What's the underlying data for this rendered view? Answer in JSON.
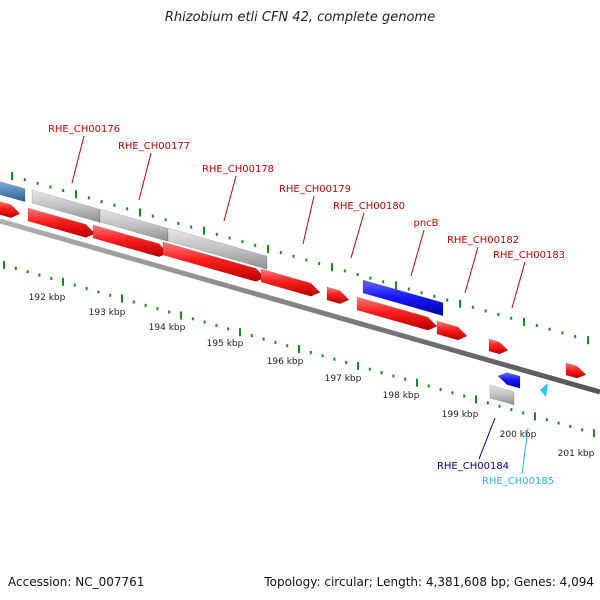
{
  "title": "Rhizobium etli CFN 42, complete genome",
  "footer": {
    "accession": "Accession: NC_007761",
    "summary": "Topology: circular; Length: 4,381,608 bp; Genes: 4,094"
  },
  "colors": {
    "forward_gene": "#ff1f1f",
    "reverse_gene": "#1a1aff",
    "pseudo_gene": "#c0c0c0",
    "light_blue": "#29c5ee",
    "steel_blue": "#4a86c0",
    "backbone": "#7a7a7a",
    "tick": "#1a8a1a",
    "label_red": "#cc0000",
    "label_navy": "#00008b",
    "label_cyan": "#29b6e6",
    "kbp_text": "#222222"
  },
  "scale": {
    "labels": [
      "192 kbp",
      "193 kbp",
      "194 kbp",
      "195 kbp",
      "196 kbp",
      "197 kbp",
      "198 kbp",
      "199 kbp",
      "200 kbp",
      "201 kbp"
    ]
  },
  "gene_labels": [
    {
      "text": "RHE_CH00176",
      "color": "label_red"
    },
    {
      "text": "RHE_CH00177",
      "color": "label_red"
    },
    {
      "text": "RHE_CH00178",
      "color": "label_red"
    },
    {
      "text": "RHE_CH00179",
      "color": "label_red"
    },
    {
      "text": "RHE_CH00180",
      "color": "label_red"
    },
    {
      "text": "pncB",
      "color": "label_red"
    },
    {
      "text": "RHE_CH00182",
      "color": "label_red"
    },
    {
      "text": "RHE_CH00183",
      "color": "label_red"
    },
    {
      "text": "RHE_CH00184",
      "color": "label_navy"
    },
    {
      "text": "RHE_CH00185",
      "color": "label_cyan"
    }
  ]
}
